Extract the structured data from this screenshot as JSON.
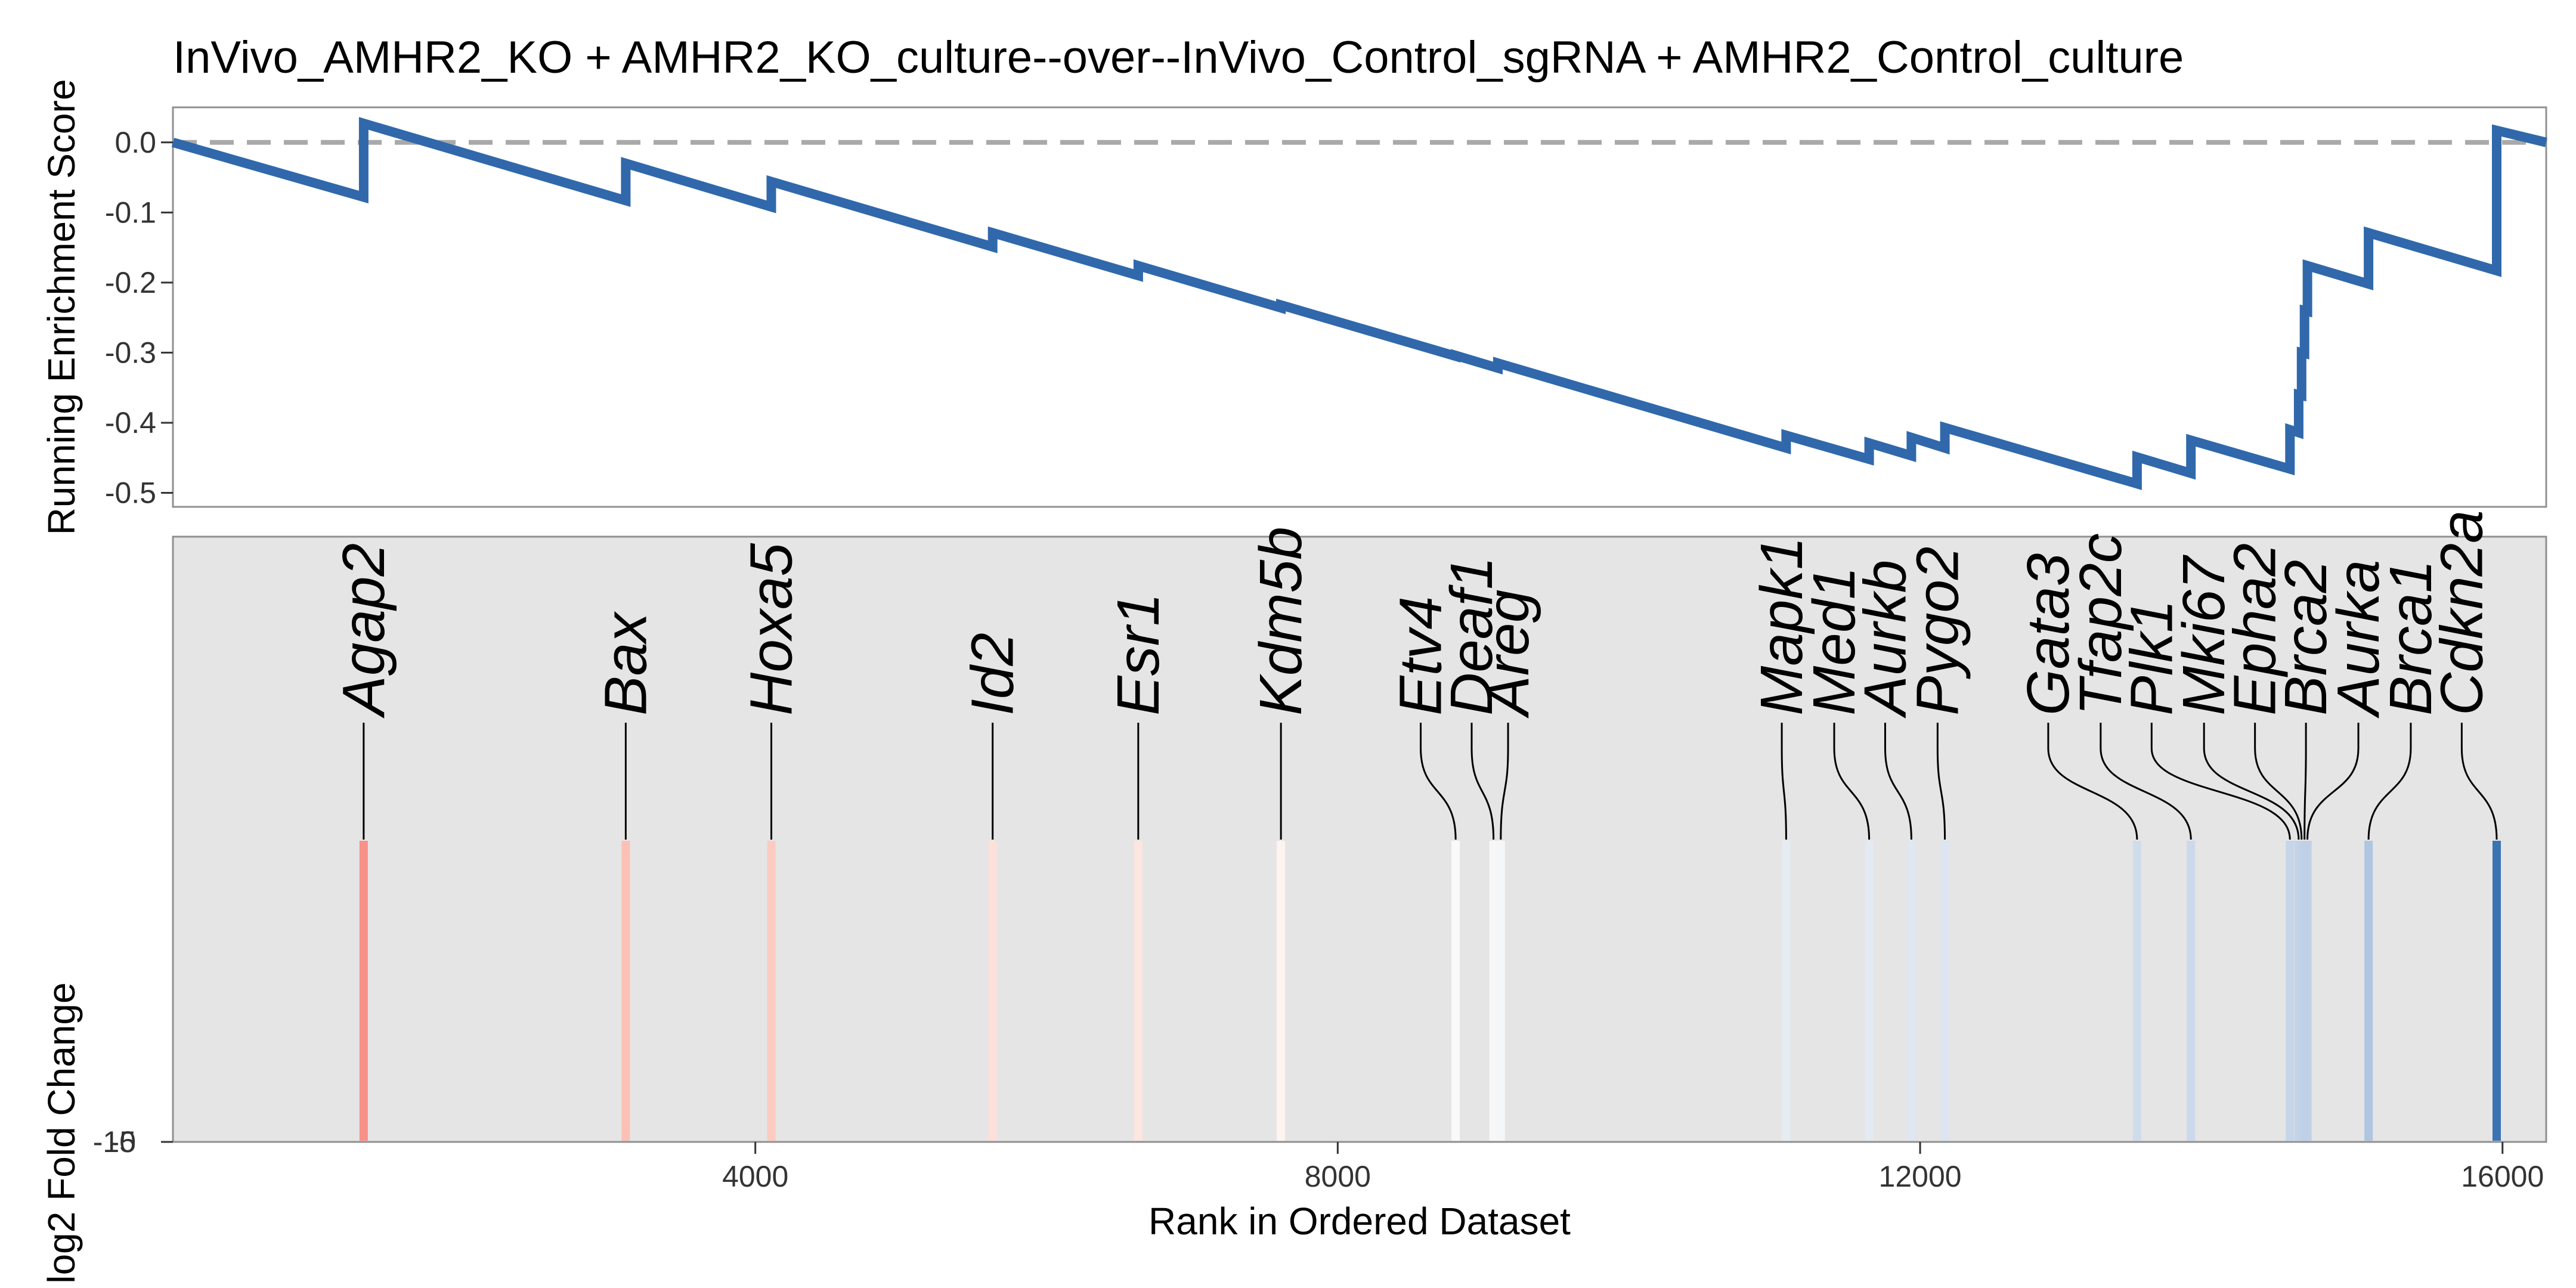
{
  "chart_data": {
    "type": "line",
    "title": "InVivo_AMHR2_KO + AMHR2_KO_culture--over--InVivo_Control_sgRNA + AMHR2_Control_culture",
    "xlabel": "Rank in Ordered Dataset",
    "ylabel_top": "Running Enrichment Score",
    "ylabel_bottom": "log2 Fold Change",
    "xlim": [
      0,
      16300
    ],
    "ylim_top": [
      -0.52,
      0.05
    ],
    "x_ticks": [
      4000,
      8000,
      12000,
      16000
    ],
    "x_tick_labels": [
      "4000",
      "8000",
      "12000",
      "16000"
    ],
    "y_ticks_top": [
      0.0,
      -0.1,
      -0.2,
      -0.3,
      -0.4,
      -0.5
    ],
    "y_tick_labels_top": [
      "0.0",
      "-0.1",
      "-0.2",
      "-0.3",
      "-0.4",
      "-0.5"
    ],
    "y_tick_labels_bottom": [
      "-10",
      "-5"
    ],
    "zero_line": "dashed",
    "panel_background_bottom": "#e5e5e5",
    "series": [
      {
        "color": "#3068ab",
        "points": [
          [
            0,
            0.0
          ],
          [
            1310,
            -0.078
          ],
          [
            1310,
            0.027
          ],
          [
            3110,
            -0.083
          ],
          [
            3110,
            -0.03
          ],
          [
            4110,
            -0.092
          ],
          [
            4110,
            -0.056
          ],
          [
            5630,
            -0.149
          ],
          [
            5630,
            -0.129
          ],
          [
            6630,
            -0.19
          ],
          [
            6630,
            -0.176
          ],
          [
            7610,
            -0.236
          ],
          [
            7610,
            -0.232
          ],
          [
            8810,
            -0.305
          ],
          [
            8810,
            -0.304
          ],
          [
            9100,
            -0.322
          ],
          [
            9100,
            -0.315
          ],
          [
            11080,
            -0.436
          ],
          [
            11080,
            -0.418
          ],
          [
            11650,
            -0.452
          ],
          [
            11650,
            -0.429
          ],
          [
            11940,
            -0.447
          ],
          [
            11940,
            -0.421
          ],
          [
            12170,
            -0.436
          ],
          [
            12170,
            -0.407
          ],
          [
            13490,
            -0.487
          ],
          [
            13490,
            -0.449
          ],
          [
            13860,
            -0.472
          ],
          [
            13860,
            -0.425
          ],
          [
            14540,
            -0.466
          ],
          [
            14540,
            -0.41
          ],
          [
            14600,
            -0.414
          ],
          [
            14600,
            -0.36
          ],
          [
            14620,
            -0.361
          ],
          [
            14620,
            -0.3
          ],
          [
            14640,
            -0.301
          ],
          [
            14640,
            -0.24
          ],
          [
            14660,
            -0.241
          ],
          [
            14660,
            -0.176
          ],
          [
            15080,
            -0.202
          ],
          [
            15080,
            -0.129
          ],
          [
            15960,
            -0.183
          ],
          [
            15960,
            0.017
          ],
          [
            16300,
            0.0
          ]
        ]
      }
    ],
    "hits": [
      {
        "gene": "Agap2",
        "rank": 1310,
        "color": "#f7918a",
        "label_x": 1310
      },
      {
        "gene": "Bax",
        "rank": 3110,
        "color": "#fbc1b5",
        "label_x": 3110
      },
      {
        "gene": "Hoxa5",
        "rank": 4110,
        "color": "#fccbc1",
        "label_x": 4110
      },
      {
        "gene": "Id2",
        "rank": 5630,
        "color": "#fde0da",
        "label_x": 5630
      },
      {
        "gene": "Esr1",
        "rank": 6630,
        "color": "#fde6e0",
        "label_x": 6630
      },
      {
        "gene": "Kdm5b",
        "rank": 7610,
        "color": "#fdf3f0",
        "label_x": 7610
      },
      {
        "gene": "Etv4",
        "rank": 8810,
        "color": "#f9f9f9",
        "label_x": 8570
      },
      {
        "gene": "Deaf1",
        "rank": 9070,
        "color": "#f7f7f7",
        "label_x": 8920
      },
      {
        "gene": "Areg",
        "rank": 9120,
        "color": "#f5f6f8",
        "label_x": 9170
      },
      {
        "gene": "Mapk1",
        "rank": 11080,
        "color": "#e6ecf4",
        "label_x": 11050
      },
      {
        "gene": "Med1",
        "rank": 11650,
        "color": "#e3eaf3",
        "label_x": 11410
      },
      {
        "gene": "Aurkb",
        "rank": 11940,
        "color": "#dfe7f2",
        "label_x": 11760
      },
      {
        "gene": "Pygo2",
        "rank": 12170,
        "color": "#dce5f1",
        "label_x": 12120
      },
      {
        "gene": "Gata3",
        "rank": 13490,
        "color": "#cfdcec",
        "label_x": 12880
      },
      {
        "gene": "Tfap2c",
        "rank": 13860,
        "color": "#cbd9eb",
        "label_x": 13240
      },
      {
        "gene": "Plk1",
        "rank": 14540,
        "color": "#c6d5e9",
        "label_x": 13590
      },
      {
        "gene": "Mki67",
        "rank": 14600,
        "color": "#c4d4e8",
        "label_x": 13950
      },
      {
        "gene": "Epha2",
        "rank": 14620,
        "color": "#c2d3e8",
        "label_x": 14300
      },
      {
        "gene": "Brca2",
        "rank": 14640,
        "color": "#c0d1e7",
        "label_x": 14650
      },
      {
        "gene": "Aurka",
        "rank": 14660,
        "color": "#bfd0e7",
        "label_x": 15010
      },
      {
        "gene": "Brca1",
        "rank": 15080,
        "color": "#afc5e1",
        "label_x": 15370
      },
      {
        "gene": "Cdkn2a",
        "rank": 15960,
        "color": "#3a74b3",
        "label_x": 15720
      }
    ]
  },
  "colors": {
    "line": "#3068ab",
    "zero_line": "#a9a9a9",
    "panel_border": "#909090",
    "bottom_panel_fill": "#e5e5e5"
  }
}
